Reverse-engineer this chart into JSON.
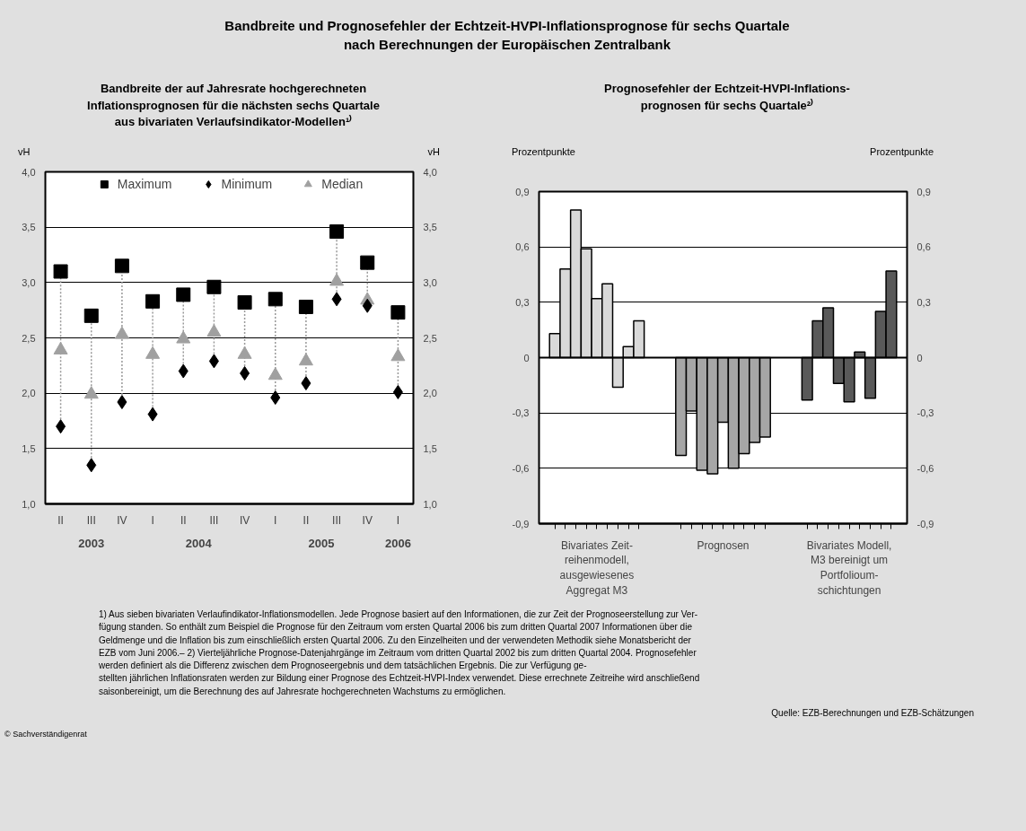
{
  "chart_data": [
    {
      "type": "scatter",
      "title": "Bandbreite und Prognosefehler der Echtzeit-HVPI-Inflationsprognose für sechs Quartale\nnach Berechnungen der Europäischen Zentralbank",
      "subtitle": "Bandbreite der auf Jahresrate hochgerechneten\nInflationsprognosen für die nächsten sechs Quartale\naus bivariaten Verlaufsindikator-Modellen¹⁾",
      "categories": [
        "II",
        "III",
        "IV",
        "I",
        "II",
        "III",
        "IV",
        "I",
        "II",
        "III",
        "IV",
        "I"
      ],
      "series": [
        {
          "name": "Maximum",
          "color": "#000000",
          "marker": "square",
          "values": [
            3.1,
            2.7,
            3.15,
            2.83,
            2.89,
            2.96,
            2.82,
            2.85,
            2.78,
            3.46,
            3.18,
            2.73
          ]
        },
        {
          "name": "Minimum",
          "color": "#000000",
          "marker": "diamond",
          "values": [
            1.7,
            1.35,
            1.92,
            1.81,
            2.2,
            2.29,
            2.18,
            1.96,
            2.09,
            2.85,
            2.79,
            2.01
          ]
        },
        {
          "name": "Median",
          "color": "#a0a0a0",
          "marker": "triangle",
          "values": [
            2.39,
            1.99,
            2.53,
            2.35,
            2.49,
            2.55,
            2.35,
            2.16,
            2.29,
            3.01,
            2.84,
            2.33
          ]
        }
      ],
      "annotations": [
        "2003",
        "2004",
        "2005",
        "2006"
      ],
      "ylabel": "vH",
      "y2label": "vH",
      "ylim": [
        1.0,
        4.0
      ],
      "yticks": [
        {
          "value": 1.0,
          "label": "1,0"
        },
        {
          "value": 1.5,
          "label": "1,5"
        },
        {
          "value": 2.0,
          "label": "2,0"
        },
        {
          "value": 2.5,
          "label": "2,5"
        },
        {
          "value": 3.0,
          "label": "3,0"
        },
        {
          "value": 3.5,
          "label": "3,5"
        },
        {
          "value": 4.0,
          "label": "4,0"
        }
      ],
      "y2lim": [
        1.0,
        4.0
      ],
      "y2ticks": [
        {
          "value": 1.0,
          "label": "1,0"
        },
        {
          "value": 1.5,
          "label": "1,5"
        },
        {
          "value": 2.0,
          "label": "2,0"
        },
        {
          "value": 2.5,
          "label": "2,5"
        },
        {
          "value": 3.0,
          "label": "3,0"
        },
        {
          "value": 3.5,
          "label": "3,5"
        },
        {
          "value": 4.0,
          "label": "4,0"
        }
      ],
      "grid": "y",
      "legend": "top"
    },
    {
      "type": "bar",
      "subtitle": "Prognosefehler der Echtzeit-HVPI-Inflations-\nprognosen für sechs Quartale²⁾",
      "categories": [
        null,
        null,
        null,
        null,
        null,
        null,
        null,
        null,
        null,
        null,
        null,
        null,
        null,
        null,
        null,
        null,
        null,
        null,
        null,
        null,
        null,
        null,
        null,
        null,
        null,
        null,
        null,
        null,
        null,
        null,
        null,
        null,
        null,
        null,
        null
      ],
      "values": [
        null,
        0.13,
        0.48,
        0.8,
        0.59,
        0.32,
        0.4,
        -0.16,
        0.06,
        0.2,
        null,
        null,
        null,
        -0.53,
        -0.29,
        -0.61,
        -0.63,
        -0.35,
        -0.6,
        -0.52,
        -0.46,
        -0.43,
        null,
        null,
        null,
        -0.23,
        0.2,
        0.27,
        -0.14,
        -0.24,
        0.03,
        -0.22,
        0.25,
        0.47,
        null
      ],
      "colors": [
        null,
        "#d9d9d9",
        "#d9d9d9",
        "#d9d9d9",
        "#d9d9d9",
        "#d9d9d9",
        "#d9d9d9",
        "#d9d9d9",
        "#d9d9d9",
        "#d9d9d9",
        null,
        null,
        null,
        "#a6a6a6",
        "#a6a6a6",
        "#a6a6a6",
        "#a6a6a6",
        "#a6a6a6",
        "#a6a6a6",
        "#a6a6a6",
        "#a6a6a6",
        "#a6a6a6",
        null,
        null,
        null,
        "#595959",
        "#595959",
        "#595959",
        "#595959",
        "#595959",
        "#595959",
        "#595959",
        "#595959",
        "#595959",
        null
      ],
      "ylabel": "Prozentpunkte",
      "y2label": "Prozentpunkte",
      "ylim": [
        -0.9,
        0.9
      ],
      "yticks": [
        {
          "value": -0.9,
          "label": "-0,9"
        },
        {
          "value": -0.6,
          "label": "-0,6"
        },
        {
          "value": -0.3,
          "label": "-0,3"
        },
        0,
        {
          "value": 0.3,
          "label": "0,3"
        },
        {
          "value": 0.6,
          "label": "0,6"
        },
        {
          "value": 0.9,
          "label": "0,9"
        }
      ],
      "y2lim": [
        -0.9,
        0.9
      ],
      "y2ticks": [
        {
          "value": -0.9,
          "label": "-0,9"
        },
        {
          "value": -0.6,
          "label": "-0,6"
        },
        {
          "value": -0.3,
          "label": "-0,3"
        },
        0,
        {
          "value": 0.3,
          "label": "0,3"
        },
        {
          "value": 0.6,
          "label": "0,6"
        },
        {
          "value": 0.9,
          "label": "0,9"
        }
      ],
      "grid": "y",
      "annotations": [
        "Bivariates Zeit-\nreihenmodell,\nausgewiesenes\nAggregat M3",
        "Prognosen",
        "Bivariates Modell,\nM3 bereinigt um\nPortfolioum-\nschichtungen",
        "1) Aus sieben bivariaten Verlaufindikator-Inflationsmodellen. Jede Prognose basiert auf den Informationen, die zur Zeit der Prognoseerstellung zur Ver-\nfügung standen. So enthält zum Beispiel die Prognose für den Zeitraum vom ersten Quartal 2006 bis zum dritten Quartal 2007 Informationen über die\nGeldmenge und die Inflation bis zum einschließlich ersten Quartal 2006. Zu den Einzelheiten und der verwendeten Methodik siehe Monatsbericht der\nEZB vom Juni 2006.– 2) Vierteljährliche Prognose-Datenjahrgänge im Zeitraum vom dritten Quartal 2002 bis zum dritten Quartal 2004. Prognosefehler\nwerden definiert als die Differenz zwischen dem Prognoseergebnis und dem tatsächlichen Ergebnis. Die zur Verfügung ge-\nstellten jährlichen Inflationsraten werden zur Bildung einer Prognose des Echtzeit-HVPI-Index verwendet. Diese errechnete Zeitreihe wird anschließend\nsaisonbereinigt, um die Berechnung des auf Jahresrate hochgerechneten Wachstums zu ermöglichen.",
        "Quelle: EZB-Berechnungen und EZB-Schätzungen",
        "© Sachverständigenrat"
      ]
    }
  ]
}
